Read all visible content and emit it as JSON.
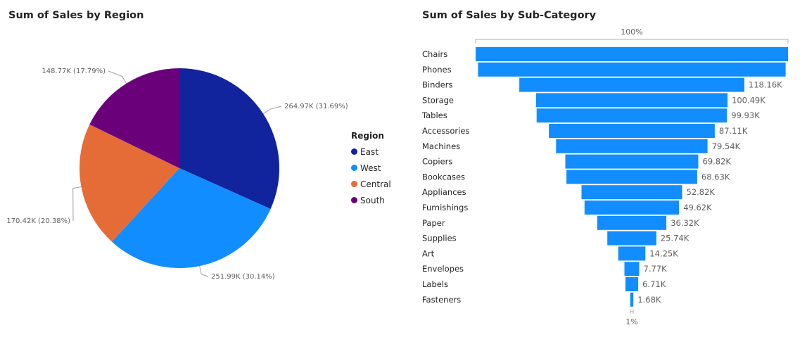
{
  "chart_data": [
    {
      "type": "pie",
      "title": "Sum of Sales by Region",
      "legend": {
        "title": "Region",
        "placement": "right"
      },
      "slices": [
        {
          "name": "East",
          "value": 264.97,
          "label": "264.97K (31.69%)",
          "color": "#12239E"
        },
        {
          "name": "West",
          "value": 251.99,
          "label": "251.99K (30.14%)",
          "color": "#118DFF"
        },
        {
          "name": "Central",
          "value": 170.42,
          "label": "170.42K (20.38%)",
          "color": "#E66C37"
        },
        {
          "name": "South",
          "value": 148.77,
          "label": "148.77K (17.79%)",
          "color": "#6B007B"
        }
      ]
    },
    {
      "type": "funnel",
      "title": "Sum of Sales by Sub-Category",
      "top_label": "100%",
      "bottom_label": "1%",
      "bar_color": "#118DFF",
      "max_value": 164.0,
      "categories": [
        "Chairs",
        "Phones",
        "Binders",
        "Storage",
        "Tables",
        "Accessories",
        "Machines",
        "Copiers",
        "Bookcases",
        "Appliances",
        "Furnishings",
        "Paper",
        "Supplies",
        "Art",
        "Envelopes",
        "Labels",
        "Fasteners"
      ],
      "values": [
        164.0,
        161.5,
        118.16,
        100.49,
        99.93,
        87.11,
        79.54,
        69.82,
        68.63,
        52.82,
        49.62,
        36.32,
        25.74,
        14.25,
        7.77,
        6.71,
        1.68
      ],
      "value_labels": [
        "",
        "",
        "118.16K",
        "100.49K",
        "99.93K",
        "87.11K",
        "79.54K",
        "69.82K",
        "68.63K",
        "52.82K",
        "49.62K",
        "36.32K",
        "25.74K",
        "14.25K",
        "7.77K",
        "6.71K",
        "1.68K"
      ]
    }
  ]
}
